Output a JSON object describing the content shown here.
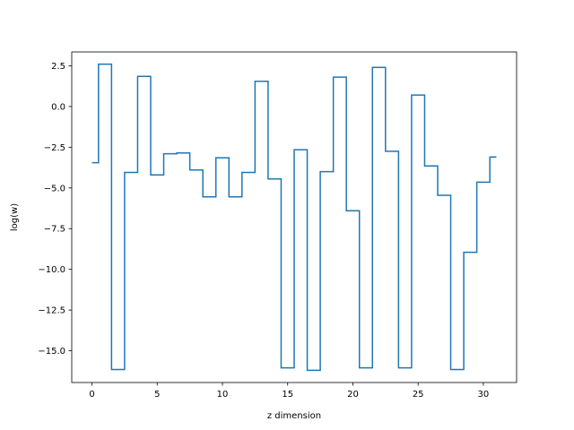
{
  "chart_data": {
    "type": "line",
    "drawstyle": "steps-mid",
    "title": "",
    "xlabel": "z dimension",
    "ylabel": "log(w)",
    "xlim": [
      -1.55,
      32.55
    ],
    "ylim": [
      -16.95,
      3.35
    ],
    "xticks": [
      0,
      5,
      10,
      15,
      20,
      25,
      30
    ],
    "yticks": [
      2.5,
      0.0,
      -2.5,
      -5.0,
      -7.5,
      -10.0,
      -12.5,
      -15.0
    ],
    "xtick_labels": [
      "0",
      "5",
      "10",
      "15",
      "20",
      "25",
      "30"
    ],
    "ytick_labels": [
      "2.5",
      "0.0",
      "−2.5",
      "−5.0",
      "−7.5",
      "−10.0",
      "−12.5",
      "−15.0"
    ],
    "grid": false,
    "legend": "none",
    "series": [
      {
        "color": "#1f77b4",
        "x": [
          0,
          1,
          2,
          3,
          4,
          5,
          6,
          7,
          8,
          9,
          10,
          11,
          12,
          13,
          14,
          15,
          16,
          17,
          18,
          19,
          20,
          21,
          22,
          23,
          24,
          25,
          26,
          27,
          28,
          29,
          30,
          31
        ],
        "y": [
          -3.45,
          2.6,
          -16.15,
          -4.05,
          1.85,
          -4.2,
          -2.9,
          -2.85,
          -3.9,
          -5.55,
          -3.15,
          -5.55,
          -4.05,
          1.55,
          -4.45,
          -16.05,
          -2.65,
          -16.2,
          -4.0,
          1.8,
          -6.4,
          -16.05,
          2.4,
          -2.75,
          -16.05,
          0.7,
          -3.65,
          -5.45,
          -16.15,
          -8.95,
          -4.65,
          -3.1
        ]
      }
    ]
  }
}
